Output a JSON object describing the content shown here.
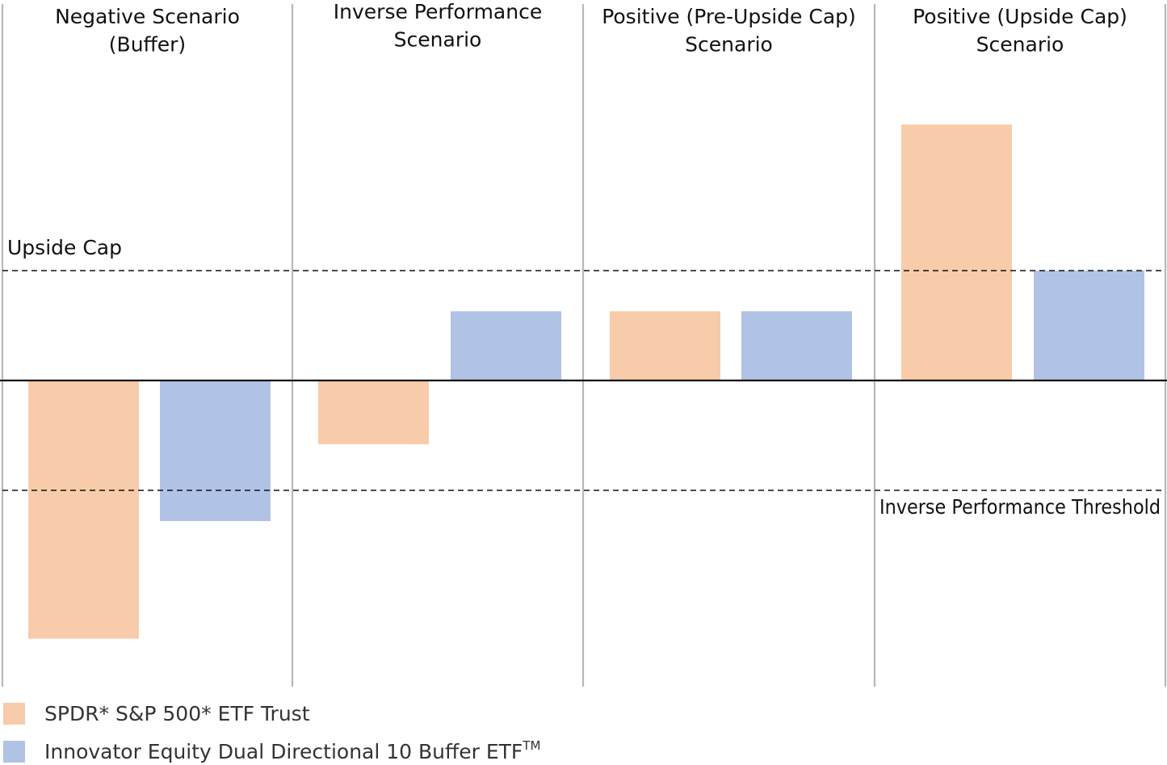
{
  "chart_data": {
    "type": "bar",
    "categories": [
      "Negative Scenario (Buffer)",
      "Inverse Performance Scenario",
      "Positive (Pre-Upside Cap) Scenario",
      "Positive (Upside Cap) Scenario"
    ],
    "category_titles": [
      [
        "Negative Scenario",
        "(Buffer)"
      ],
      [
        "Inverse Performance",
        "Scenario"
      ],
      [
        "Positive (Pre-Upside Cap)",
        "Scenario"
      ],
      [
        "Positive (Upside Cap)",
        "Scenario"
      ]
    ],
    "series": [
      {
        "name": "SPDR* S&P 500* ETF Trust",
        "color": "#f8cbaa",
        "values": [
          -2.35,
          -0.58,
          0.63,
          2.33
        ]
      },
      {
        "name": "Innovator Equity Dual Directional 10 Buffer ETF",
        "name_superscript": "TM",
        "color": "#b1c3e5",
        "values": [
          -1.28,
          0.63,
          0.63,
          1.0
        ]
      }
    ],
    "reference_lines": [
      {
        "label": "Upside Cap",
        "value": 1.0,
        "style": "dashed"
      },
      {
        "label": "Inverse Performance Threshold",
        "value": -1.0,
        "style": "dashed"
      }
    ],
    "ylim": [
      -2.8,
      3.5
    ],
    "title": "",
    "xlabel": "",
    "ylabel": "",
    "grid": false,
    "legend_position": "bottom-left"
  }
}
